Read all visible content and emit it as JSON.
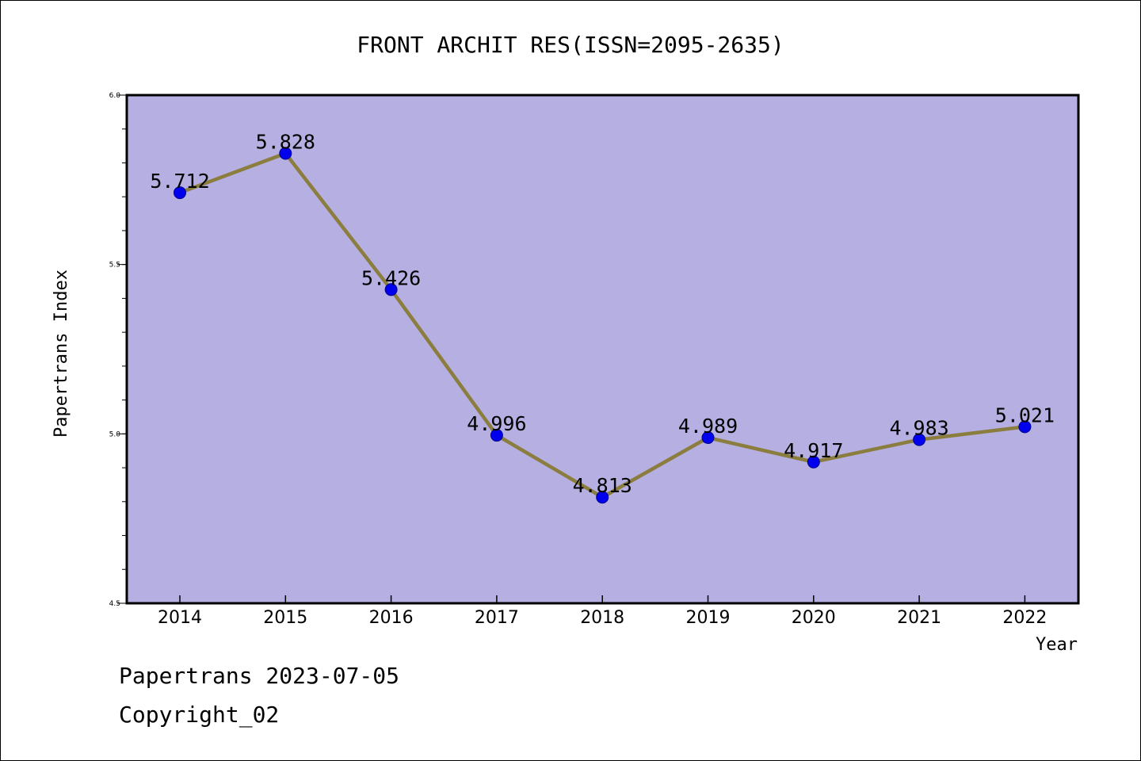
{
  "chart_data": {
    "type": "line",
    "title": "FRONT ARCHIT RES(ISSN=2095-2635)",
    "xlabel": "Year",
    "ylabel": "Papertrans Index",
    "categories": [
      "2014",
      "2015",
      "2016",
      "2017",
      "2018",
      "2019",
      "2020",
      "2021",
      "2022"
    ],
    "series": [
      {
        "values": [
          5.712,
          5.828,
          5.426,
          4.996,
          4.813,
          4.989,
          4.917,
          4.983,
          5.021
        ],
        "labels": [
          "5.712",
          "5.828",
          "5.426",
          "4.996",
          "4.813",
          "4.989",
          "4.917",
          "4.983",
          "5.021"
        ]
      }
    ],
    "ylim": [
      4.5,
      6.0
    ],
    "yticks": [
      "4.5",
      "5.0",
      "5.5",
      "6.0"
    ],
    "grid": false,
    "colors": {
      "plot_background": "#b5afe2",
      "line": "#8b7d3e",
      "marker": "#0000ee"
    }
  },
  "footer": {
    "date_line": "Papertrans 2023-07-05",
    "copyright_line": "Copyright_02"
  }
}
